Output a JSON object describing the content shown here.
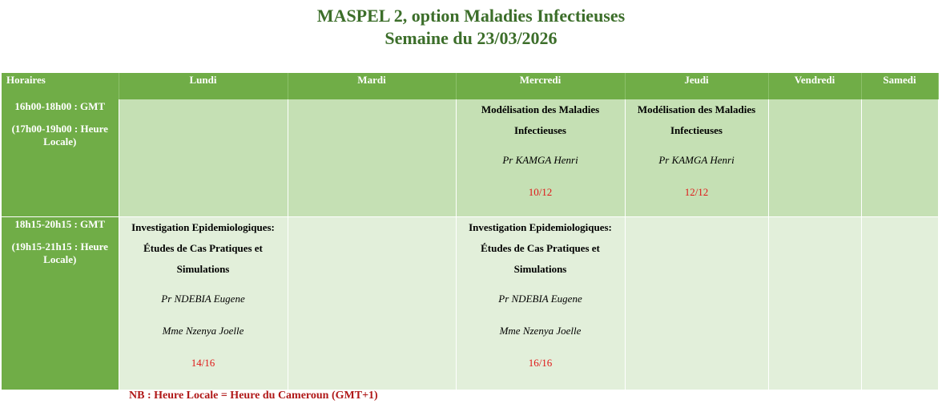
{
  "title": {
    "line1": "MASPEL 2, option Maladies Infectieuses",
    "line2": "Semaine du 23/03/2026"
  },
  "headers": [
    "Horaires",
    "Lundi",
    "Mardi",
    "Mercredi",
    "Jeudi",
    "Vendredi",
    "Samedi"
  ],
  "rows": [
    {
      "time_gmt": "16h00-18h00 : GMT",
      "time_local": "(17h00-19h00 : Heure Locale)",
      "mercredi": {
        "course": "Modélisation des Maladies Infectieuses",
        "teachers": [
          "Pr KAMGA Henri"
        ],
        "count": "10/12"
      },
      "jeudi": {
        "course": "Modélisation des Maladies Infectieuses",
        "teachers": [
          "Pr KAMGA Henri"
        ],
        "count": "12/12"
      }
    },
    {
      "time_gmt": "18h15-20h15 : GMT",
      "time_local": "(19h15-21h15 : Heure Locale)",
      "lundi": {
        "course": "Investigation Epidemiologiques: Études de Cas Pratiques et Simulations",
        "teachers": [
          "Pr NDEBIA Eugene",
          "Mme Nzenya Joelle"
        ],
        "count": "14/16"
      },
      "mercredi": {
        "course": "Investigation Epidemiologiques: Études de Cas Pratiques et Simulations",
        "teachers": [
          "Pr NDEBIA Eugene",
          "Mme Nzenya Joelle"
        ],
        "count": "16/16"
      }
    }
  ],
  "note": "NB : Heure Locale = Heure du Cameroun (GMT+1)"
}
